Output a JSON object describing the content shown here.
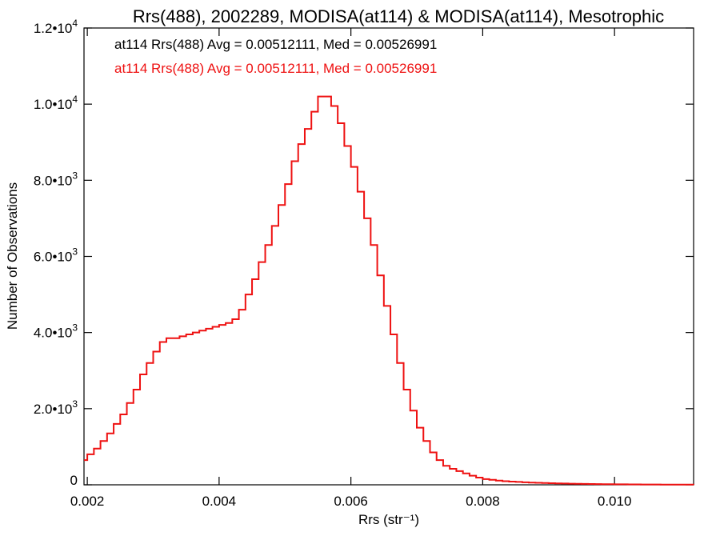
{
  "chart_data": {
    "type": "line",
    "title": "Rrs(488), 2002289, MODISA(at114) & MODISA(at114), Mesotrophic",
    "xlabel": "Rrs (str⁻¹)",
    "ylabel": "Number of Observations",
    "xlim": [
      0.00195,
      0.0112
    ],
    "ylim": [
      0,
      12000
    ],
    "x_ticks": [
      {
        "value": 0.002,
        "label": "0.002"
      },
      {
        "value": 0.004,
        "label": "0.004"
      },
      {
        "value": 0.006,
        "label": "0.006"
      },
      {
        "value": 0.008,
        "label": "0.008"
      },
      {
        "value": 0.01,
        "label": "0.010"
      }
    ],
    "y_ticks": [
      {
        "value": 0,
        "mantissa": "0",
        "exponent": ""
      },
      {
        "value": 2000,
        "mantissa": "2.0•10",
        "exponent": "3"
      },
      {
        "value": 4000,
        "mantissa": "4.0•10",
        "exponent": "3"
      },
      {
        "value": 6000,
        "mantissa": "6.0•10",
        "exponent": "3"
      },
      {
        "value": 8000,
        "mantissa": "8.0•10",
        "exponent": "3"
      },
      {
        "value": 10000,
        "mantissa": "1.0•10",
        "exponent": "4"
      },
      {
        "value": 12000,
        "mantissa": "1.2•10",
        "exponent": "4"
      }
    ],
    "annotations": [
      {
        "text": "at114 Rrs(488) Avg = 0.00512111, Med = 0.00526991",
        "color": "#000000"
      },
      {
        "text": "at114 Rrs(488) Avg = 0.00512111, Med = 0.00526991",
        "color": "#ee1111"
      }
    ],
    "series": [
      {
        "color": "#ee1111",
        "x": [
          0.00195,
          0.002,
          0.0021,
          0.0022,
          0.0023,
          0.0024,
          0.0025,
          0.0026,
          0.0027,
          0.0028,
          0.0029,
          0.003,
          0.0031,
          0.0032,
          0.0033,
          0.0034,
          0.0035,
          0.0036,
          0.0037,
          0.0038,
          0.0039,
          0.004,
          0.0041,
          0.0042,
          0.0043,
          0.0044,
          0.0045,
          0.0046,
          0.0047,
          0.0048,
          0.0049,
          0.005,
          0.0051,
          0.0052,
          0.0053,
          0.0054,
          0.0055,
          0.0056,
          0.0057,
          0.0058,
          0.0059,
          0.006,
          0.0061,
          0.0062,
          0.0063,
          0.0064,
          0.0065,
          0.0066,
          0.0067,
          0.0068,
          0.0069,
          0.007,
          0.0071,
          0.0072,
          0.0073,
          0.0074,
          0.0075,
          0.0076,
          0.0077,
          0.0078,
          0.0079,
          0.008,
          0.0081,
          0.0082,
          0.0083,
          0.0084,
          0.0085,
          0.0086,
          0.0087,
          0.0088,
          0.0089,
          0.009,
          0.0091,
          0.0092,
          0.0093,
          0.0094,
          0.0095,
          0.0096,
          0.0097,
          0.0098,
          0.0099,
          0.01,
          0.0101,
          0.0102,
          0.0103,
          0.0104,
          0.0105,
          0.0106,
          0.0107,
          0.0108,
          0.0109,
          0.011,
          0.0111,
          0.0112
        ],
        "y": [
          650,
          800,
          950,
          1150,
          1350,
          1600,
          1850,
          2150,
          2500,
          2900,
          3200,
          3500,
          3750,
          3850,
          3850,
          3900,
          3950,
          4000,
          4050,
          4100,
          4150,
          4200,
          4250,
          4350,
          4600,
          5000,
          5400,
          5850,
          6300,
          6800,
          7350,
          7900,
          8500,
          8950,
          9350,
          9800,
          10200,
          10200,
          9950,
          9500,
          8900,
          8350,
          7700,
          7000,
          6300,
          5500,
          4700,
          3950,
          3200,
          2500,
          1950,
          1500,
          1150,
          850,
          650,
          500,
          420,
          360,
          300,
          240,
          190,
          150,
          130,
          110,
          95,
          85,
          75,
          65,
          58,
          52,
          47,
          42,
          38,
          34,
          30,
          27,
          24,
          21,
          19,
          17,
          15,
          13,
          12,
          11,
          10,
          9,
          8,
          7,
          6,
          5,
          5,
          4,
          4,
          3
        ]
      }
    ],
    "grid": false
  }
}
